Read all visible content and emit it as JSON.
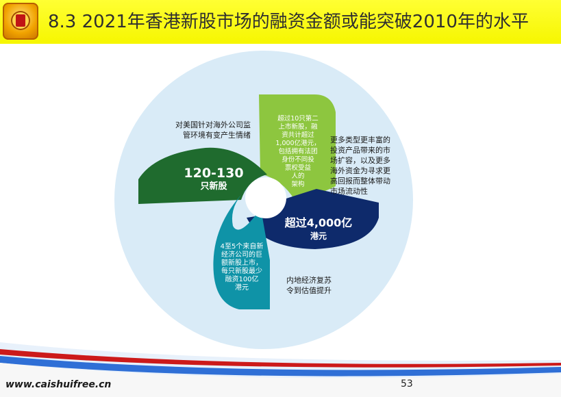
{
  "slide": {
    "title": "8.3 2021年香港新股市场的融资金额或能突破2010年的水平",
    "footer_url": "www.caishuifree.cn",
    "page_number": "53"
  },
  "diagram": {
    "green_petal": {
      "line1": "120-130",
      "line2": "只新股"
    },
    "navy_petal": {
      "line1": "超过4,000亿",
      "line2": "港元"
    },
    "teal_petal": {
      "lines": [
        "4至5个来自新",
        "经济公司的巨",
        "额新股上市，",
        "每只新股最少",
        "融资100亿",
        "港元"
      ]
    },
    "lime_petal": {
      "lines": [
        "超过10只第二",
        "上市新股，融",
        "资共计超过",
        "1,000亿港元，",
        "包括拥有法团",
        "身份不同投",
        "票权受益",
        "人的",
        "架构"
      ]
    },
    "left_note": {
      "lines": [
        "对美国针对海外公司监",
        "管环境有变产生情绪"
      ]
    },
    "right_note": {
      "lines": [
        "更多类型更丰富的",
        "投资产品带来的市",
        "场扩容，以及更多",
        "海外资金为寻求更",
        "高回报而整体带动",
        "市场流动性"
      ]
    },
    "bottom_note": {
      "lines": [
        "内地经济复苏",
        "令到估值提升"
      ]
    }
  },
  "colors": {
    "title_bg": "#ffff33",
    "circle_bg": "#d9ebf7",
    "green": "#1f6b2e",
    "lime": "#8dc63f",
    "navy": "#0e2a6b",
    "teal": "#0f93a7"
  }
}
